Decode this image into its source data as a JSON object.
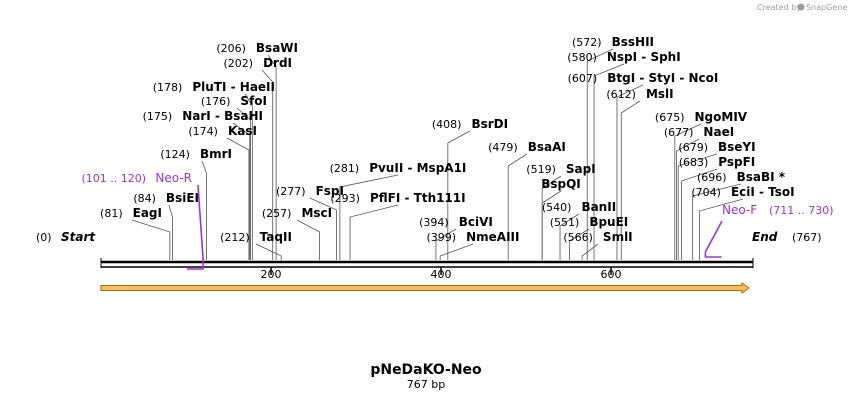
{
  "credit": {
    "prefix": "Created by",
    "brand": "SnapGene"
  },
  "plasmid": {
    "name": "pNeDaKO-Neo",
    "length_label": "767 bp",
    "length": 767
  },
  "ends": {
    "start": {
      "pos": "(0)",
      "label": "Start"
    },
    "end": {
      "pos": "(767)",
      "label": "End"
    }
  },
  "ruler": [
    {
      "value": 200,
      "label": "200"
    },
    {
      "value": 400,
      "label": "400"
    },
    {
      "value": 600,
      "label": "600"
    }
  ],
  "colors": {
    "primer": "#9a34d6",
    "feature_fill": "#f5c05a",
    "feature_stroke": "#b36b00",
    "backbone": "#000000"
  },
  "sites": [
    {
      "site": 81,
      "pos": "(81)",
      "name": "EagI"
    },
    {
      "site": 84,
      "pos": "(84)",
      "name": "BsiEI"
    },
    {
      "site": 124,
      "pos": "(124)",
      "name": "BmrI"
    },
    {
      "site": 174,
      "pos": "(174)",
      "name": "KasI"
    },
    {
      "site": 175,
      "pos": "(175)",
      "name": "NarI  -  BsaHI"
    },
    {
      "site": 176,
      "pos": "(176)",
      "name": "SfoI"
    },
    {
      "site": 178,
      "pos": "(178)",
      "name": "PluTI  -  HaeII"
    },
    {
      "site": 202,
      "pos": "(202)",
      "name": "DrdI"
    },
    {
      "site": 206,
      "pos": "(206)",
      "name": "BsaWI"
    },
    {
      "site": 212,
      "pos": "(212)",
      "name": "TaqII"
    },
    {
      "site": 257,
      "pos": "(257)",
      "name": "MscI"
    },
    {
      "site": 277,
      "pos": "(277)",
      "name": "FspI"
    },
    {
      "site": 281,
      "pos": "(281)",
      "name": "PvuII  -  MspA1I"
    },
    {
      "site": 293,
      "pos": "(293)",
      "name": "PflFI  -  Tth111I"
    },
    {
      "site": 394,
      "pos": "(394)",
      "name": "BciVI"
    },
    {
      "site": 399,
      "pos": "(399)",
      "name": "NmeAIII"
    },
    {
      "site": 408,
      "pos": "(408)",
      "name": "BsrDI"
    },
    {
      "site": 479,
      "pos": "(479)",
      "name": "BsaAI"
    },
    {
      "site": 519,
      "pos": "(519)",
      "name": "SapI"
    },
    {
      "site": 519,
      "pos": "",
      "name": "BspQI"
    },
    {
      "site": 540,
      "pos": "(540)",
      "name": "BanII"
    },
    {
      "site": 551,
      "pos": "(551)",
      "name": "BpuEI"
    },
    {
      "site": 566,
      "pos": "(566)",
      "name": "SmlI"
    },
    {
      "site": 572,
      "pos": "(572)",
      "name": "BssHII"
    },
    {
      "site": 580,
      "pos": "(580)",
      "name": "NspI  -  SphI"
    },
    {
      "site": 607,
      "pos": "(607)",
      "name": "BtgI  -  StyI  -  NcoI"
    },
    {
      "site": 612,
      "pos": "(612)",
      "name": "MslI"
    },
    {
      "site": 675,
      "pos": "(675)",
      "name": "NgoMIV"
    },
    {
      "site": 677,
      "pos": "(677)",
      "name": "NaeI"
    },
    {
      "site": 679,
      "pos": "(679)",
      "name": "BseYI"
    },
    {
      "site": 683,
      "pos": "(683)",
      "name": "PspFI"
    },
    {
      "site": 696,
      "pos": "(696)",
      "name": "BsaBI *"
    },
    {
      "site": 704,
      "pos": "(704)",
      "name": "EciI  -  TsoI"
    }
  ],
  "primers": [
    {
      "name": "Neo-R",
      "range": "(101 .. 120)",
      "from": 101,
      "to": 120
    },
    {
      "name": "Neo-F",
      "range": "(711 .. 730)",
      "from": 711,
      "to": 730
    }
  ],
  "feature": {
    "from": 0,
    "to": 767,
    "direction": "forward"
  }
}
